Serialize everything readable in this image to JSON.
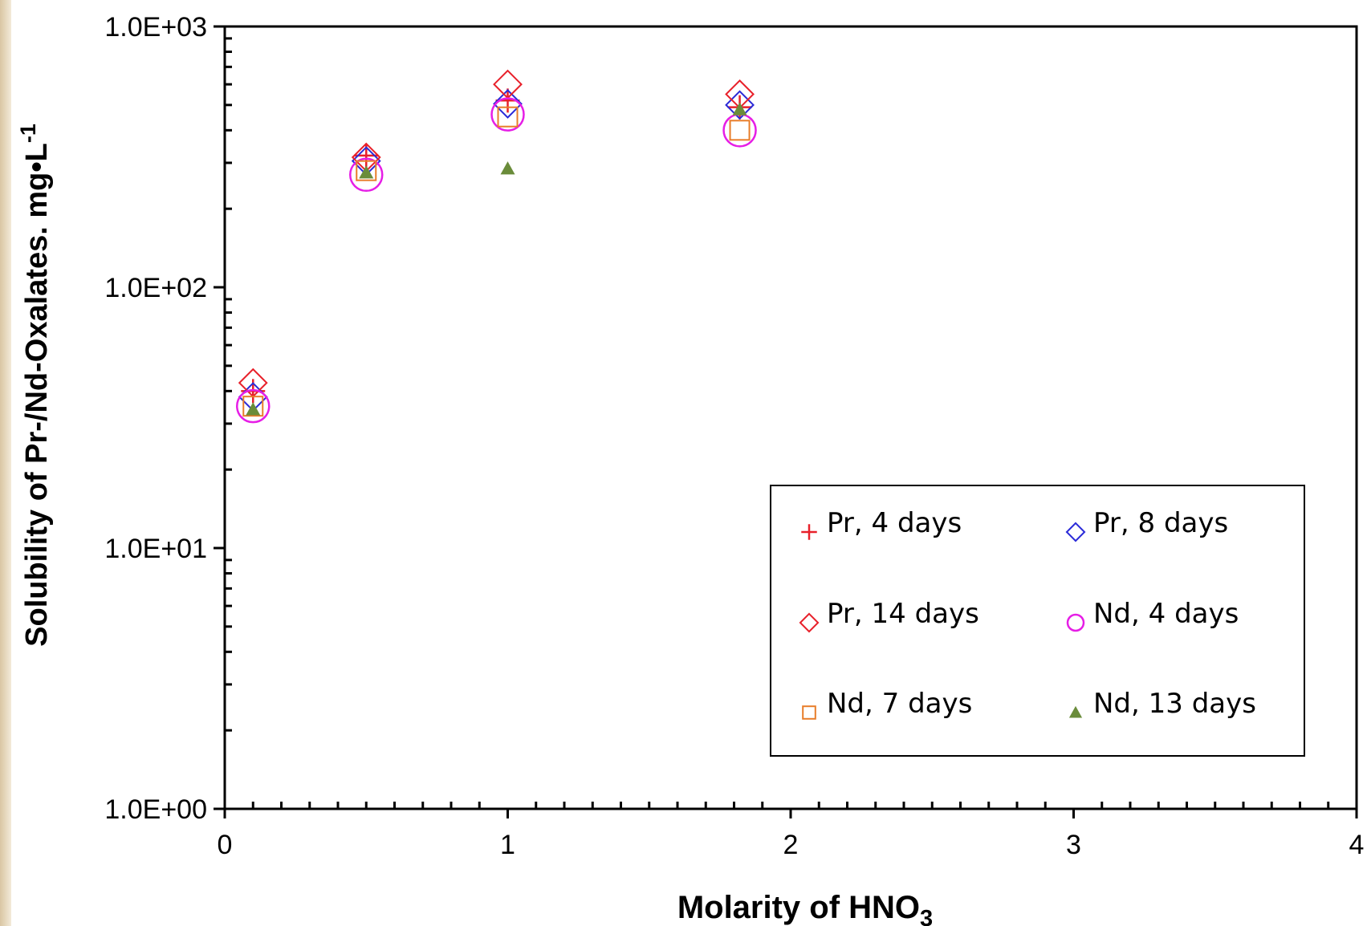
{
  "chart_data": {
    "type": "scatter",
    "title": "",
    "xlabel": "Molarity of HNO",
    "xlabel_subscript": "3",
    "ylabel": "Solubility of Pr-/Nd-Oxalates. mg•L",
    "ylabel_superscript": "-1",
    "xlim": [
      0,
      4
    ],
    "ylim": [
      1,
      1000
    ],
    "yscale": "log",
    "x_ticks": [
      0,
      1,
      2,
      3,
      4
    ],
    "x_tick_labels": [
      "0",
      "1",
      "2",
      "3",
      "4"
    ],
    "y_ticks": [
      1,
      10,
      100,
      1000
    ],
    "y_tick_labels": [
      "1.0E+00",
      "1.0E+01",
      "1.0E+02",
      "1.0E+03"
    ],
    "grid": false,
    "legend_position": "bottom-right",
    "series": [
      {
        "name": "Pr, 4 days",
        "marker": "plus",
        "color": "#e8202a",
        "x": [
          0.1,
          0.5,
          1.0,
          1.82
        ],
        "y": [
          40,
          320,
          520,
          490
        ]
      },
      {
        "name": "Pr, 8 days",
        "marker": "diamond",
        "color": "#2a2ad8",
        "x": [
          0.1,
          0.5,
          1.0,
          1.82
        ],
        "y": [
          38,
          305,
          505,
          500
        ]
      },
      {
        "name": "Pr, 14 days",
        "marker": "diamond",
        "color": "#e8202a",
        "x": [
          0.1,
          0.5,
          1.0,
          1.82
        ],
        "y": [
          43,
          315,
          600,
          550
        ]
      },
      {
        "name": "Nd, 4 days",
        "marker": "circle",
        "color": "#e61ee6",
        "x": [
          0.1,
          0.5,
          1.0,
          1.82
        ],
        "y": [
          35,
          270,
          460,
          400
        ]
      },
      {
        "name": "Nd, 7 days",
        "marker": "square",
        "color": "#e87d2a",
        "x": [
          0.1,
          0.5,
          1.0,
          1.82
        ],
        "y": [
          35,
          280,
          450,
          400
        ]
      },
      {
        "name": "Nd, 13 days",
        "marker": "triangle",
        "color": "#6a8c3a",
        "x": [
          0.1,
          0.5,
          1.0,
          1.82
        ],
        "y": [
          34,
          275,
          285,
          480
        ]
      }
    ]
  }
}
